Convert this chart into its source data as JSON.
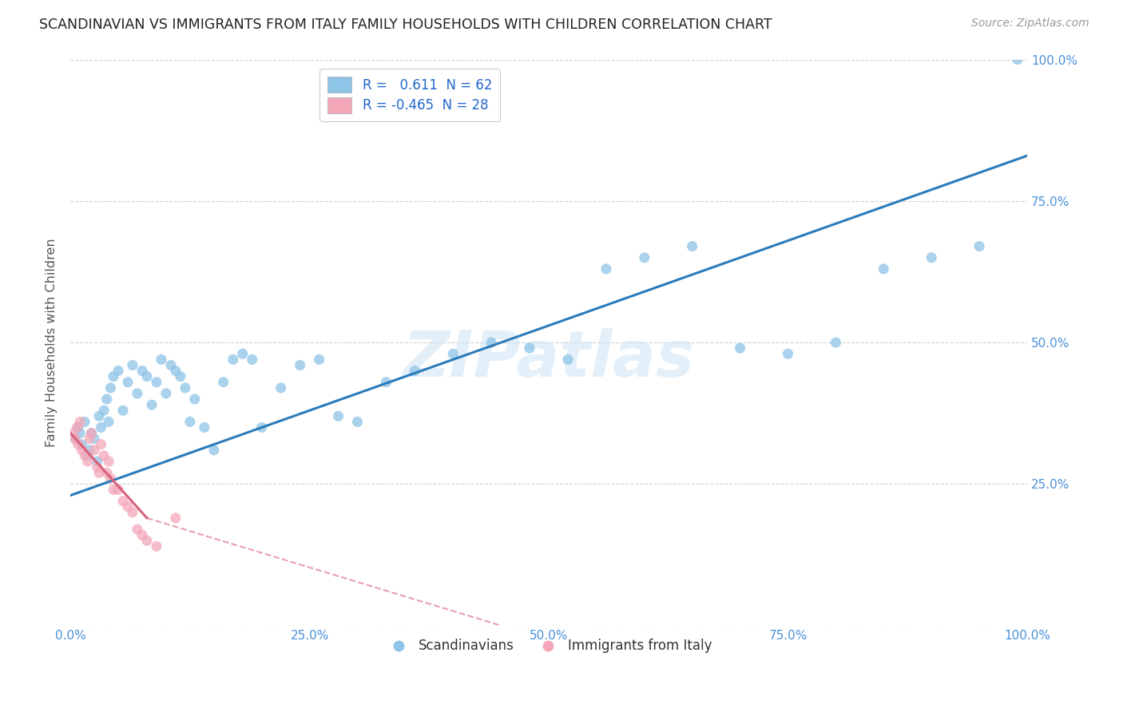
{
  "title": "SCANDINAVIAN VS IMMIGRANTS FROM ITALY FAMILY HOUSEHOLDS WITH CHILDREN CORRELATION CHART",
  "source": "Source: ZipAtlas.com",
  "ylabel": "Family Households with Children",
  "xlim": [
    0,
    100
  ],
  "ylim": [
    0,
    100
  ],
  "xticks": [
    0,
    25,
    50,
    75,
    100
  ],
  "xticklabels": [
    "0.0%",
    "25.0%",
    "50.0%",
    "75.0%",
    "100.0%"
  ],
  "yticks": [
    0,
    25,
    50,
    75,
    100
  ],
  "yticklabels_right": [
    "",
    "25.0%",
    "50.0%",
    "75.0%",
    "100.0%"
  ],
  "legend_labels": [
    "Scandinavians",
    "Immigrants from Italy"
  ],
  "r1_text": "R =   0.611  N = 62",
  "r2_text": "R = -0.465  N = 28",
  "blue_color": "#8ec4e8",
  "pink_color": "#f4a7b9",
  "line_blue": "#2b7bba",
  "line_pink": "#d9607a",
  "watermark": "ZIPatlas",
  "background_color": "#ffffff",
  "grid_color": "#d0d0d0",
  "scandinavians_x": [
    0.5,
    0.8,
    1.0,
    1.2,
    1.5,
    1.8,
    2.0,
    2.2,
    2.5,
    2.8,
    3.0,
    3.2,
    3.5,
    3.8,
    4.0,
    4.2,
    4.5,
    5.0,
    5.5,
    6.0,
    6.5,
    7.0,
    7.5,
    8.0,
    8.5,
    9.0,
    9.5,
    10.0,
    10.5,
    11.0,
    11.5,
    12.0,
    12.5,
    13.0,
    14.0,
    15.0,
    16.0,
    17.0,
    18.0,
    19.0,
    20.0,
    22.0,
    24.0,
    26.0,
    28.0,
    30.0,
    33.0,
    36.0,
    40.0,
    44.0,
    48.0,
    52.0,
    56.0,
    60.0,
    65.0,
    70.0,
    75.0,
    80.0,
    85.0,
    90.0,
    95.0,
    99.0
  ],
  "scandinavians_y": [
    33,
    35,
    34,
    32,
    36,
    30,
    31,
    34,
    33,
    29,
    37,
    35,
    38,
    40,
    36,
    42,
    44,
    45,
    38,
    43,
    46,
    41,
    45,
    44,
    39,
    43,
    47,
    41,
    46,
    45,
    44,
    42,
    36,
    40,
    35,
    31,
    43,
    47,
    48,
    47,
    35,
    42,
    46,
    47,
    37,
    36,
    43,
    45,
    48,
    50,
    49,
    47,
    63,
    65,
    67,
    49,
    48,
    50,
    63,
    65,
    67,
    100
  ],
  "italy_x": [
    0.3,
    0.5,
    0.7,
    0.8,
    1.0,
    1.2,
    1.5,
    1.8,
    2.0,
    2.2,
    2.5,
    2.8,
    3.0,
    3.2,
    3.5,
    3.8,
    4.0,
    4.2,
    4.5,
    5.0,
    5.5,
    6.0,
    6.5,
    7.0,
    7.5,
    8.0,
    9.0,
    11.0
  ],
  "italy_y": [
    34,
    33,
    35,
    32,
    36,
    31,
    30,
    29,
    33,
    34,
    31,
    28,
    27,
    32,
    30,
    27,
    29,
    26,
    24,
    24,
    22,
    21,
    20,
    17,
    16,
    15,
    14,
    19
  ],
  "blue_line_x0": 0,
  "blue_line_y0": 23,
  "blue_line_x1": 100,
  "blue_line_y1": 83,
  "pink_solid_x0": 0,
  "pink_solid_y0": 34,
  "pink_solid_x1": 8,
  "pink_solid_y1": 19,
  "pink_dash_x1": 45,
  "pink_dash_y1": 0
}
